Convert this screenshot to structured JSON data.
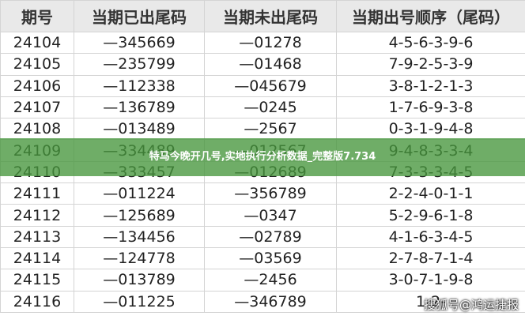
{
  "table": {
    "header": [
      "期号",
      "当期已出尾码",
      "当期未出尾码",
      "当期出号顺序（尾码）"
    ],
    "rows": [
      [
        "24104",
        "—345669",
        "—01278",
        "4-5-6-3-9-6"
      ],
      [
        "24105",
        "—235799",
        "—01468",
        "7-9-2-5-3-9"
      ],
      [
        "24106",
        "—112338",
        "—045679",
        "3-8-1-2-1-3"
      ],
      [
        "24107",
        "—136789",
        "—0245",
        "1-7-6-9-3-8"
      ],
      [
        "24108",
        "—013489",
        "—2567",
        "0-3-1-9-4-8"
      ],
      [
        "24109",
        "—334489",
        "—012567",
        "9-4-8-3-3-4"
      ],
      [
        "24110",
        "—333457",
        "—012689",
        "7-3-3-3-4-5"
      ],
      [
        "24111",
        "—011224",
        "—356789",
        "2-2-4-0-1-1"
      ],
      [
        "24112",
        "—125689",
        "—0347",
        "5-2-9-6-1-8"
      ],
      [
        "24113",
        "—134456",
        "—02789",
        "4-1-6-3-4-5"
      ],
      [
        "24114",
        "—124778",
        "—03569",
        "2-7-8-7-1-4"
      ],
      [
        "24115",
        "—013789",
        "—2456",
        "3-0-7-1-9-8"
      ],
      [
        "24116",
        "—011225",
        "—346789",
        "1-2-"
      ]
    ]
  },
  "banner": "特马今晚开几号,实地执行分析数据_完整版7.734",
  "watermark": "搜狐号@鸿运捷报"
}
